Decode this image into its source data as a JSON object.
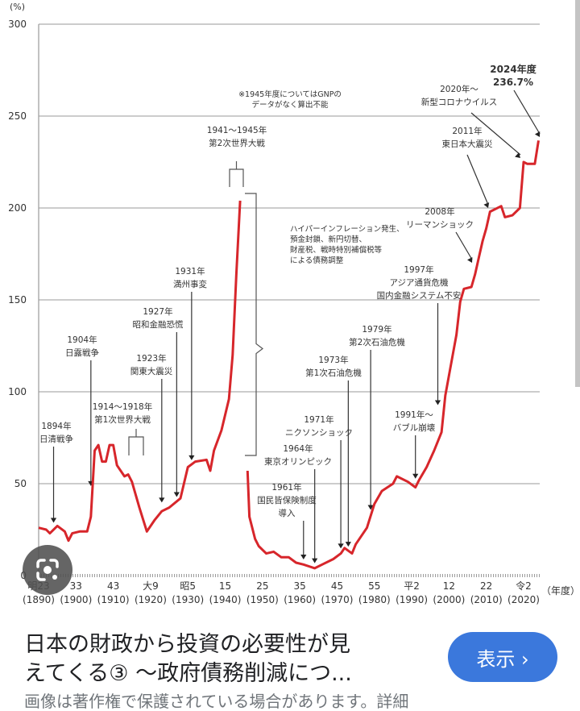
{
  "chart_data": {
    "type": "line",
    "title": "",
    "ylabel": "(%)",
    "xlabel": "（年度）",
    "ylim": [
      0,
      300
    ],
    "xlim": [
      1890,
      2025
    ],
    "grid": true,
    "y_ticks": [
      "0",
      "50",
      "100",
      "150",
      "200",
      "250",
      "300"
    ],
    "y_tick_values": [
      0,
      50,
      100,
      150,
      200,
      250,
      300
    ],
    "x_ticks": [
      {
        "year": 1890,
        "era": "明23",
        "western": "(1890)"
      },
      {
        "year": 1900,
        "era": "33",
        "western": "(1900)"
      },
      {
        "year": 1910,
        "era": "43",
        "western": "(1910)"
      },
      {
        "year": 1920,
        "era": "大9",
        "western": "(1920)"
      },
      {
        "year": 1930,
        "era": "昭5",
        "western": "(1930)"
      },
      {
        "year": 1940,
        "era": "15",
        "western": "(1940)"
      },
      {
        "year": 1950,
        "era": "25",
        "western": "(1950)"
      },
      {
        "year": 1960,
        "era": "35",
        "western": "(1960)"
      },
      {
        "year": 1970,
        "era": "45",
        "western": "(1970)"
      },
      {
        "year": 1980,
        "era": "55",
        "western": "(1980)"
      },
      {
        "year": 1990,
        "era": "平2",
        "western": "(1990)"
      },
      {
        "year": 2000,
        "era": "12",
        "western": "(2000)"
      },
      {
        "year": 2010,
        "era": "22",
        "western": "(2010)"
      },
      {
        "year": 2020,
        "era": "令2",
        "western": "(2020)"
      }
    ],
    "series": [
      {
        "name": "prewar",
        "color": "#d7262b",
        "x": [
          1890,
          1892,
          1893,
          1895,
          1897,
          1898,
          1899,
          1901,
          1903,
          1904,
          1905,
          1906,
          1907,
          1908,
          1909,
          1910,
          1911,
          1913,
          1914,
          1915,
          1917,
          1919,
          1921,
          1923,
          1925,
          1928,
          1930,
          1932,
          1935,
          1936,
          1937,
          1939,
          1941,
          1942,
          1943,
          1944
        ],
        "y": [
          26,
          25,
          23,
          27,
          24,
          19,
          23,
          24,
          24,
          32,
          68,
          71,
          62,
          62,
          71,
          71,
          60,
          54,
          55,
          51,
          37,
          24,
          30,
          35,
          37,
          42,
          59,
          62,
          63,
          57,
          68,
          79,
          96,
          120,
          164,
          204
        ]
      },
      {
        "name": "postwar",
        "color": "#d7262b",
        "x": [
          1946,
          1946.5,
          1948,
          1949,
          1951,
          1953,
          1955,
          1957,
          1959,
          1961,
          1964,
          1966,
          1969,
          1971,
          1972,
          1974,
          1975,
          1978,
          1980,
          1982,
          1985,
          1986,
          1989,
          1991,
          1992,
          1994,
          1996,
          1998,
          1999,
          2001,
          2002,
          2003,
          2004,
          2006,
          2007,
          2008,
          2009,
          2010,
          2011,
          2014,
          2015,
          2017,
          2019,
          2020,
          2021,
          2023,
          2024
        ],
        "y": [
          57,
          32,
          20,
          16,
          12,
          13,
          10,
          10,
          7,
          6,
          4,
          6,
          9,
          12,
          15,
          12,
          17,
          26,
          39,
          46,
          50,
          54,
          51,
          48,
          52,
          59,
          68,
          78,
          98,
          120,
          131,
          149,
          156,
          157,
          164,
          173,
          182,
          189,
          198,
          201,
          195,
          196,
          200,
          225,
          224,
          224,
          236.7
        ]
      }
    ],
    "annotations": [
      {
        "id": "sino",
        "lines": [
          "1894年",
          "日清戦争"
        ],
        "year": 1894,
        "value": 27
      },
      {
        "id": "russo",
        "lines": [
          "1904年",
          "日露戦争"
        ],
        "year": 1904,
        "value": 47
      },
      {
        "id": "ww1",
        "lines": [
          "1914〜1918年",
          "第1次世界大戦"
        ],
        "year": 1916,
        "value": 60
      },
      {
        "id": "kanto",
        "lines": [
          "1923年",
          "関東大震災"
        ],
        "year": 1923,
        "value": 38
      },
      {
        "id": "showa",
        "lines": [
          "1927年",
          "昭和金融恐慌"
        ],
        "year": 1927,
        "value": 41
      },
      {
        "id": "manchuria",
        "lines": [
          "1931年",
          "満州事変"
        ],
        "year": 1931,
        "value": 61
      },
      {
        "id": "ww2",
        "lines": [
          "1941〜1945年",
          "第2次世界大戦"
        ],
        "year": 1943,
        "value": 212
      },
      {
        "id": "note1945",
        "lines": [
          "※1945年度についてはGNPの",
          "データがなく算出不能"
        ]
      },
      {
        "id": "hyper",
        "lines": [
          "ハイパーインフレーション発生、",
          "預金封鎖、新円切替、",
          "財産税、戦時特別補償税等",
          "による債務調整"
        ]
      },
      {
        "id": "insurance",
        "lines": [
          "1961年",
          "国民皆保険制度",
          "導入"
        ],
        "year": 1961,
        "value": 7
      },
      {
        "id": "olympic",
        "lines": [
          "1964年",
          "東京オリンピック"
        ],
        "year": 1964,
        "value": 5
      },
      {
        "id": "nixon",
        "lines": [
          "1971年",
          "ニクソンショック"
        ],
        "year": 1971,
        "value": 13
      },
      {
        "id": "oil1",
        "lines": [
          "1973年",
          "第1次石油危機"
        ],
        "year": 1973,
        "value": 14
      },
      {
        "id": "oil2",
        "lines": [
          "1979年",
          "第2次石油危機"
        ],
        "year": 1979,
        "value": 34
      },
      {
        "id": "bubble",
        "lines": [
          "1991年〜",
          "バブル崩壊"
        ],
        "year": 1991,
        "value": 51
      },
      {
        "id": "asia",
        "lines": [
          "1997年",
          "アジア通貨危機",
          "国内金融システム不安"
        ],
        "year": 1997,
        "value": 91
      },
      {
        "id": "lehman",
        "lines": [
          "2008年",
          "リーマンショック"
        ],
        "year": 2007,
        "value": 170
      },
      {
        "id": "quake",
        "lines": [
          "2011年",
          "東日本大震災"
        ],
        "year": 2010,
        "value": 200
      },
      {
        "id": "covid",
        "lines": [
          "2020年〜",
          "新型コロナウイルス"
        ],
        "year": 2019,
        "value": 228
      },
      {
        "id": "latest",
        "lines": [
          "2024年度",
          "236.7%"
        ],
        "year": 2024,
        "value": 239
      }
    ]
  },
  "caption": {
    "title_line1": "日本の財政から投資の必要性が見",
    "title_line2": "えてくる③ 〜政府債務削減につ...",
    "show_button": "表示 ›",
    "notice": "画像は著作権で保護されている場合があります。詳細"
  },
  "icons": {
    "lens": "google-lens-icon"
  },
  "colors": {
    "line": "#d7262b",
    "button": "#3b78dc",
    "grid": "#9a9a9a"
  }
}
